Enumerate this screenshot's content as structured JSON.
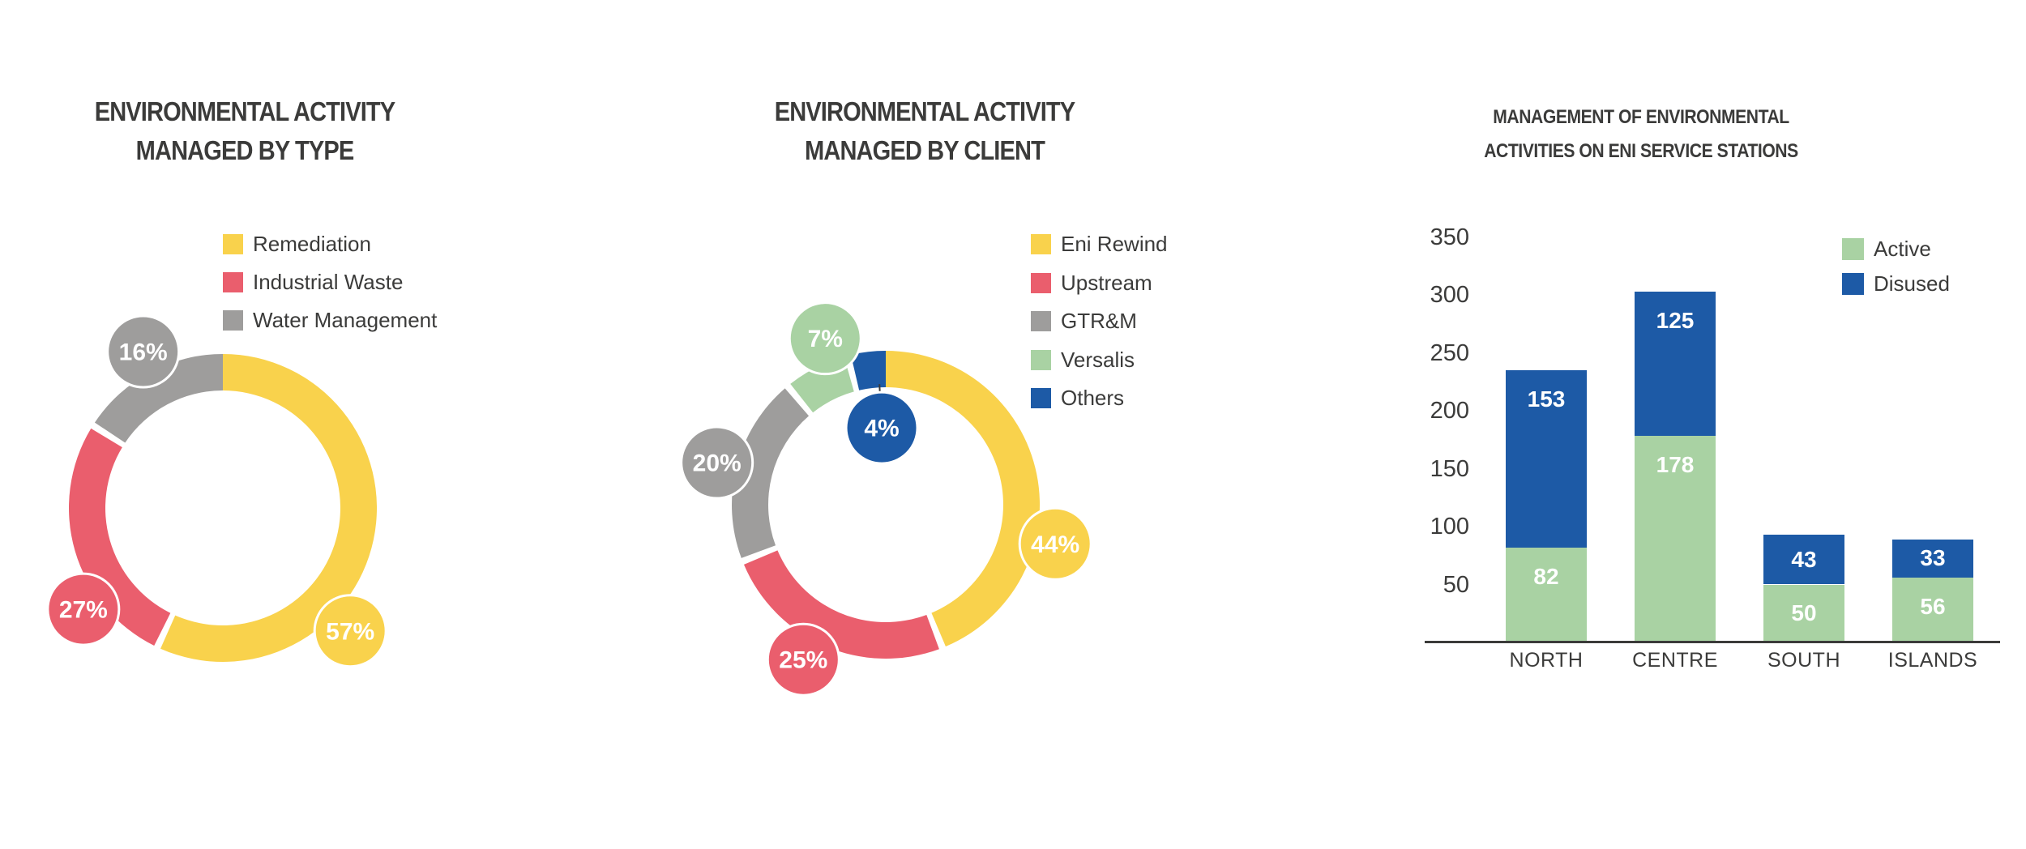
{
  "page": {
    "background": "#ffffff"
  },
  "palette": {
    "yellow": "#F9D24C",
    "red": "#EA5E6D",
    "gray": "#9E9D9C",
    "green": "#A9D2A3",
    "blue": "#1D5AA6",
    "text_dark": "#3B3B3A",
    "white": "#FFFFFF"
  },
  "chart_data": [
    {
      "id": "by_type",
      "type": "donut",
      "title_lines": [
        "ENVIRONMENTAL ACTIVITY",
        "MANAGED BY TYPE"
      ],
      "legend_position": "right-of-donut-top",
      "grid": false,
      "slices": [
        {
          "label": "Remediation",
          "value_pct": 57,
          "pct_label": "57%",
          "color_key": "yellow",
          "bubble_angle_deg": 134,
          "bubble_dist": 1.15
        },
        {
          "label": "Industrial Waste",
          "value_pct": 27,
          "pct_label": "27%",
          "color_key": "red",
          "bubble_angle_deg": 234,
          "bubble_dist": 1.12
        },
        {
          "label": "Water Management",
          "value_pct": 16,
          "pct_label": "16%",
          "color_key": "gray",
          "bubble_angle_deg": 333,
          "bubble_dist": 1.14
        }
      ]
    },
    {
      "id": "by_client",
      "type": "donut",
      "title_lines": [
        "ENVIRONMENTAL ACTIVITY",
        "MANAGED BY CLIENT"
      ],
      "legend_position": "right-of-donut-top",
      "grid": false,
      "slices": [
        {
          "label": "Eni Rewind",
          "value_pct": 44,
          "pct_label": "44%",
          "color_key": "yellow",
          "bubble_angle_deg": 103,
          "bubble_dist": 1.13
        },
        {
          "label": "Upstream",
          "value_pct": 25,
          "pct_label": "25%",
          "color_key": "red",
          "bubble_angle_deg": 208,
          "bubble_dist": 1.14
        },
        {
          "label": "GTR&M",
          "value_pct": 20,
          "pct_label": "20%",
          "color_key": "gray",
          "bubble_angle_deg": 284,
          "bubble_dist": 1.13
        },
        {
          "label": "Versalis",
          "value_pct": 7,
          "pct_label": "7%",
          "color_key": "green",
          "bubble_angle_deg": 340,
          "bubble_dist": 1.15
        },
        {
          "label": "Others",
          "value_pct": 4,
          "pct_label": "4%",
          "color_key": "blue",
          "bubble_angle_deg": 357,
          "bubble_dist": 0.5,
          "bubble_inside": true,
          "leader_line": true
        }
      ]
    },
    {
      "id": "service_stations",
      "type": "bar",
      "stacked": true,
      "title_lines": [
        "MANAGEMENT OF ENVIRONMENTAL",
        "ACTIVITIES ON ENI SERVICE STATIONS"
      ],
      "categories": [
        "NORTH",
        "CENTRE",
        "SOUTH",
        "ISLANDS"
      ],
      "series": [
        {
          "name": "Active",
          "color_key": "green",
          "values": [
            82,
            178,
            50,
            56
          ]
        },
        {
          "name": "Disused",
          "color_key": "blue",
          "values": [
            153,
            125,
            43,
            33
          ]
        }
      ],
      "ylim": [
        0,
        350
      ],
      "yticks": [
        50,
        100,
        150,
        200,
        250,
        300,
        350
      ],
      "grid": false,
      "legend_position": "top-right"
    }
  ]
}
